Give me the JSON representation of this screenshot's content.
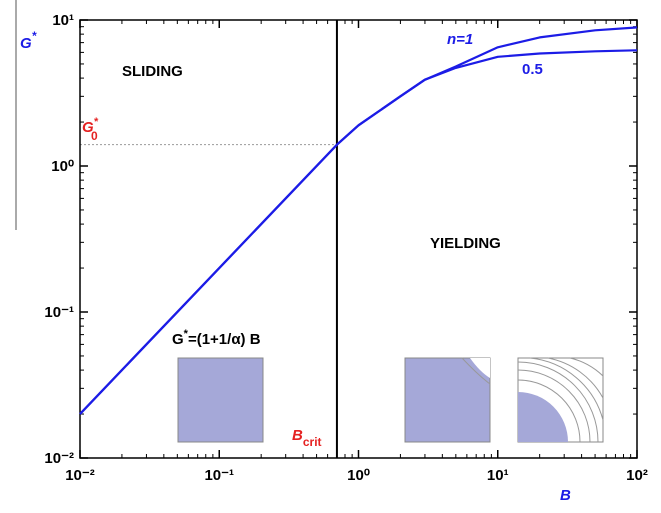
{
  "chart_data": {
    "type": "line",
    "log_x": true,
    "log_y": true,
    "x_label": {
      "text": "B"
    },
    "y_label": {
      "text": "G",
      "sup": "*"
    },
    "x": [
      0.01,
      0.1,
      0.7,
      1,
      2,
      3,
      5,
      10,
      20,
      50,
      100
    ],
    "series": [
      {
        "name": "n=1",
        "color": "#1c1ce6",
        "values": [
          0.02,
          0.2,
          1.4,
          1.9,
          3.0,
          3.9,
          4.8,
          6.5,
          7.6,
          8.5,
          8.9
        ]
      },
      {
        "name": "0.5",
        "color": "#1c1ce6",
        "values": [
          0.02,
          0.2,
          1.4,
          1.9,
          3.0,
          3.9,
          4.7,
          5.6,
          5.9,
          6.1,
          6.2
        ]
      }
    ],
    "xlim": [
      0.01,
      100
    ],
    "ylim": [
      0.01,
      10
    ],
    "xticks": [
      {
        "value": 0.01,
        "label": "10⁻²"
      },
      {
        "value": 0.1,
        "label": "10⁻¹"
      },
      {
        "value": 1,
        "label": "10⁰"
      },
      {
        "value": 10,
        "label": "10¹"
      },
      {
        "value": 100,
        "label": "10²"
      }
    ],
    "yticks": [
      {
        "value": 0.01,
        "label": "10⁻²"
      },
      {
        "value": 0.1,
        "label": "10⁻¹"
      },
      {
        "value": 1,
        "label": "10⁰"
      },
      {
        "value": 10,
        "label": "10¹"
      }
    ],
    "b_crit": {
      "value": 0.7,
      "text": "B",
      "sub": "crit"
    },
    "g0": {
      "value": 1.4,
      "text": "G",
      "sup": "*",
      "sub": "0"
    },
    "regions": [
      "SLIDING",
      "YIELDING"
    ],
    "formula": {
      "text": "G",
      "sup": "*",
      "rest": "=(1+1/α) B"
    }
  }
}
